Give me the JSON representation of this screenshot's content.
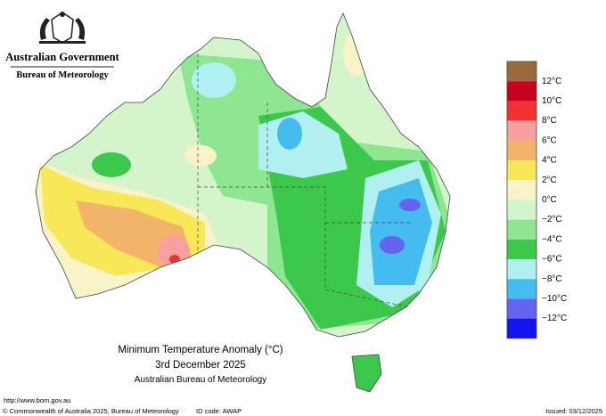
{
  "header": {
    "government": "Australian Government",
    "bureau": "Bureau of Meteorology"
  },
  "legend": {
    "labels": [
      "12°C",
      "10°C",
      "8°C",
      "6°C",
      "4°C",
      "2°C",
      "0°C",
      "−2°C",
      "−4°C",
      "−6°C",
      "−8°C",
      "−10°C",
      "−12°C"
    ],
    "colors": [
      "#9b6a3c",
      "#c8001e",
      "#f03232",
      "#f8a0a0",
      "#f2b468",
      "#f8e858",
      "#f8f4c8",
      "#d4f4cc",
      "#8ee690",
      "#3cc84a",
      "#b0f0f0",
      "#44bcf0",
      "#6464f0",
      "#1414f0"
    ]
  },
  "title": {
    "line1": "Minimum Temperature Anomaly (°C)",
    "line2": "3rd December 2025",
    "line3": "Australian Bureau of Meteorology"
  },
  "footer": {
    "url": "http://www.bom.gov.au",
    "copyright": "© Commonwealth of Australia 2025, Bureau of Meteorology",
    "id_code": "ID code: AWAP",
    "issued": "Issued: 03/12/2025"
  }
}
